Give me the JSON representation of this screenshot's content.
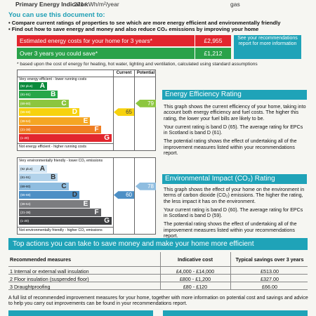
{
  "header": {
    "pei_label": "Primary Energy Indicator:",
    "pei_value": "271 kWh/m²/year",
    "fuel_fragment": "gas"
  },
  "use_doc": {
    "title": "You can use this document to:",
    "bullets": [
      "Compare current ratings of properties to see which are more energy efficient and environmentally friendly",
      "Find out how to save energy and money and also reduce CO₂ emissions by improving your home"
    ]
  },
  "costs": {
    "estimated_label": "Estimated energy costs for your home for 3 years*",
    "estimated_value": "£2,955",
    "savings_label": "Over 3 years you could save*",
    "savings_value": "£1,212",
    "see_box": "See your recommendations report for more information",
    "note": "* based upon the cost of energy for heating, hot water, lighting and ventilation, calculated using standard assumptions",
    "colors": {
      "red": "#e2262e",
      "green": "#2aa24a",
      "teal": "#1fa3b8"
    }
  },
  "ee_chart": {
    "header_current": "Current",
    "header_potential": "Potential",
    "top_caption": "Very energy efficient - lower running costs",
    "bottom_caption": "Not energy efficient - higher running costs",
    "bands": [
      {
        "range": "(92 plus)",
        "letter": "A",
        "color": "#0a8a3c"
      },
      {
        "range": "(81-91)",
        "letter": "B",
        "color": "#27a648"
      },
      {
        "range": "(69-80)",
        "letter": "C",
        "color": "#8cc63f"
      },
      {
        "range": "(55-68)",
        "letter": "D",
        "color": "#f7d20e"
      },
      {
        "range": "(39-54)",
        "letter": "E",
        "color": "#f5a623"
      },
      {
        "range": "(21-38)",
        "letter": "F",
        "color": "#ef7d22"
      },
      {
        "range": "(1-20)",
        "letter": "G",
        "color": "#e2262e"
      }
    ],
    "current": 65,
    "potential": 79
  },
  "ee_text": {
    "title": "Energy Efficiency Rating",
    "p1": "This graph shows the current efficiency of your home, taking into account both energy efficiency and fuel costs. The higher this rating, the lower your fuel bills are likely to be.",
    "p2": "Your current rating is band D (65). The average rating for EPCs in Scotland is band D (61).",
    "p3": "The potential rating shows the effect of undertaking all of the improvement measures listed within your recommendations report."
  },
  "ei_chart": {
    "top_caption": "Very environmentally friendly - lower CO₂ emissions",
    "bottom_caption": "Not environmentally friendly - higher CO₂ emissions",
    "bands": [
      {
        "range": "(92 plus)",
        "letter": "A",
        "color": "#d3e6f4"
      },
      {
        "range": "(81-91)",
        "letter": "B",
        "color": "#b3d3eb"
      },
      {
        "range": "(69-80)",
        "letter": "C",
        "color": "#8fbde0"
      },
      {
        "range": "(55-68)",
        "letter": "D",
        "color": "#4d8fc5"
      },
      {
        "range": "(39-54)",
        "letter": "E",
        "color": "#7c7d80"
      },
      {
        "range": "(21-38)",
        "letter": "F",
        "color": "#5e5f62"
      },
      {
        "range": "(1-20)",
        "letter": "G",
        "color": "#3c3d40"
      }
    ],
    "current": 60,
    "potential": 78
  },
  "ei_text": {
    "title": "Environmental Impact (CO₂) Rating",
    "p1": "This graph shows the effect of your home on the environment in terms of carbon dioxide (CO₂) emissions. The higher the rating, the less impact it has on the environment.",
    "p2": "Your current rating is band D (60). The average rating for EPCs in Scotland is band D (59).",
    "p3": "The potential rating shows the effect of undertaking all of the improvement measures listed within your recommendations report."
  },
  "actions": {
    "title": "Top actions you can take to save money and make your home more efficient",
    "headers": [
      "Recommended measures",
      "Indicative cost",
      "Typical savings over 3 years"
    ],
    "rows": [
      [
        "1 Internal or external wall insulation",
        "£4,000 - £14,000",
        "£513.00"
      ],
      [
        "2 Floor insulation (suspended floor)",
        "£800 - £1,200",
        "£327.00"
      ],
      [
        "3 Draughtproofing",
        "£80 - £120",
        "£66.00"
      ]
    ],
    "footer": "A full list of recommended improvement measures for your home, together with more information on potential cost and savings and advice to help you carry out improvements can be found in your recommendations report."
  }
}
